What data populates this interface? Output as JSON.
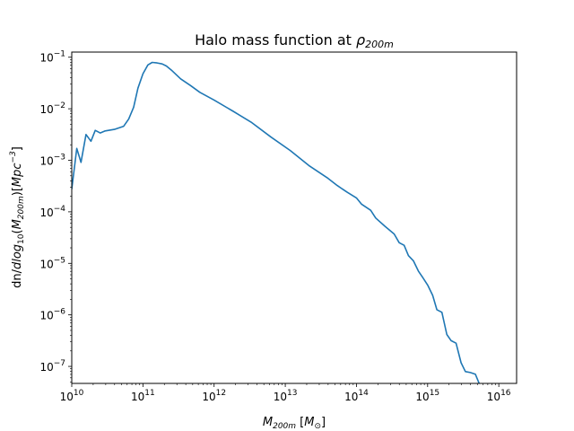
{
  "chart_data": {
    "type": "line",
    "title": "Halo mass function at ρ_200m",
    "title_parts": {
      "main": "Halo mass function at ",
      "rho": "ρ",
      "sub": "200m"
    },
    "xlabel": "M_200m [M_⊙]",
    "xlabel_parts": {
      "m": "M",
      "sub": "200m",
      "unit_open": " [",
      "unit_m": "M",
      "unit_sub": "⊙",
      "unit_close": "]"
    },
    "ylabel": "dn/dlog_10(M_200m)[Mpc^-3]",
    "ylabel_parts": {
      "prefix": "dn/",
      "dlog": "dlog",
      "sub10": "10",
      "open": "(",
      "m": "M",
      "sub200": "200m",
      "close": ")",
      "bracket_open": "[",
      "mpc": "Mpc",
      "exp": "−3",
      "bracket_close": "]"
    },
    "xscale": "log",
    "yscale": "log",
    "xlim": [
      10,
      16.25
    ],
    "ylim": [
      -7.33,
      -0.9
    ],
    "x_ticks": [
      {
        "base": "10",
        "exp": "10",
        "value": 10
      },
      {
        "base": "10",
        "exp": "11",
        "value": 11
      },
      {
        "base": "10",
        "exp": "12",
        "value": 12
      },
      {
        "base": "10",
        "exp": "13",
        "value": 13
      },
      {
        "base": "10",
        "exp": "14",
        "value": 14
      },
      {
        "base": "10",
        "exp": "15",
        "value": 15
      },
      {
        "base": "10",
        "exp": "16",
        "value": 16
      }
    ],
    "y_ticks": [
      {
        "base": "10",
        "exp": "−7",
        "value": -7
      },
      {
        "base": "10",
        "exp": "−6",
        "value": -6
      },
      {
        "base": "10",
        "exp": "−5",
        "value": -5
      },
      {
        "base": "10",
        "exp": "−4",
        "value": -4
      },
      {
        "base": "10",
        "exp": "−3",
        "value": -3
      },
      {
        "base": "10",
        "exp": "−2",
        "value": -2
      },
      {
        "base": "10",
        "exp": "−1",
        "value": -1
      }
    ],
    "grid": false,
    "legend": "none",
    "line_color": "#1f77b4",
    "series": [
      {
        "log10_x": [
          10.0,
          10.07,
          10.13,
          10.2,
          10.27,
          10.33,
          10.4,
          10.47,
          10.6,
          10.73,
          10.8,
          10.87,
          10.93,
          11.0,
          11.07,
          11.13,
          11.2,
          11.27,
          11.33,
          11.4,
          11.53,
          11.67,
          11.8,
          12.0,
          12.27,
          12.53,
          12.8,
          13.07,
          13.33,
          13.6,
          13.73,
          13.87,
          14.0,
          14.07,
          14.2,
          14.27,
          14.4,
          14.53,
          14.6,
          14.67,
          14.73,
          14.8,
          14.87,
          14.93,
          15.0,
          15.07,
          15.13,
          15.2,
          15.27,
          15.33,
          15.4,
          15.47,
          15.53,
          15.6,
          15.67,
          15.73,
          15.77,
          15.77
        ],
        "log10_y": [
          -3.56,
          -2.77,
          -3.04,
          -2.5,
          -2.63,
          -2.42,
          -2.47,
          -2.43,
          -2.4,
          -2.34,
          -2.2,
          -1.97,
          -1.6,
          -1.32,
          -1.15,
          -1.1,
          -1.11,
          -1.13,
          -1.17,
          -1.25,
          -1.42,
          -1.55,
          -1.68,
          -1.83,
          -2.05,
          -2.27,
          -2.55,
          -2.81,
          -3.1,
          -3.35,
          -3.49,
          -3.62,
          -3.73,
          -3.85,
          -3.97,
          -4.12,
          -4.28,
          -4.43,
          -4.6,
          -4.65,
          -4.85,
          -4.95,
          -5.15,
          -5.27,
          -5.42,
          -5.62,
          -5.9,
          -5.95,
          -6.38,
          -6.5,
          -6.55,
          -6.93,
          -7.1,
          -7.12,
          -7.15,
          -7.35,
          -7.4,
          -7.45
        ]
      }
    ]
  }
}
